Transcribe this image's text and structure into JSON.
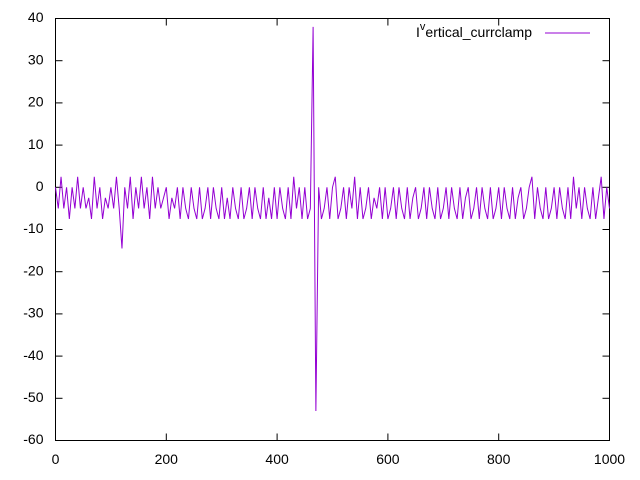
{
  "chart_data": {
    "type": "line",
    "x": [
      0,
      5,
      10,
      15,
      20,
      25,
      30,
      35,
      40,
      45,
      50,
      55,
      60,
      65,
      70,
      75,
      80,
      85,
      90,
      95,
      100,
      105,
      110,
      115,
      120,
      125,
      130,
      135,
      140,
      145,
      150,
      155,
      160,
      165,
      170,
      175,
      180,
      185,
      190,
      195,
      200,
      205,
      210,
      215,
      220,
      225,
      230,
      235,
      240,
      245,
      250,
      255,
      260,
      265,
      270,
      275,
      280,
      285,
      290,
      295,
      300,
      305,
      310,
      315,
      320,
      325,
      330,
      335,
      340,
      345,
      350,
      355,
      360,
      365,
      370,
      375,
      380,
      385,
      390,
      395,
      400,
      405,
      410,
      415,
      420,
      425,
      430,
      435,
      440,
      445,
      450,
      455,
      460,
      465,
      470,
      475,
      480,
      485,
      490,
      495,
      500,
      505,
      510,
      515,
      520,
      525,
      530,
      535,
      540,
      545,
      550,
      555,
      560,
      565,
      570,
      575,
      580,
      585,
      590,
      595,
      600,
      605,
      610,
      615,
      620,
      625,
      630,
      635,
      640,
      645,
      650,
      655,
      660,
      665,
      670,
      675,
      680,
      685,
      690,
      695,
      700,
      705,
      710,
      715,
      720,
      725,
      730,
      735,
      740,
      745,
      750,
      755,
      760,
      765,
      770,
      775,
      780,
      785,
      790,
      795,
      800,
      805,
      810,
      815,
      820,
      825,
      830,
      835,
      840,
      845,
      850,
      855,
      860,
      865,
      870,
      875,
      880,
      885,
      890,
      895,
      900,
      905,
      910,
      915,
      920,
      925,
      930,
      935,
      940,
      945,
      950,
      955,
      960,
      965,
      970,
      975,
      980,
      985,
      990,
      995,
      1000
    ],
    "series": [
      {
        "name": "Ivertical_currclamp",
        "color": "#9400d3",
        "values": [
          0,
          -5,
          2.5,
          -5,
          0,
          -7.5,
          0,
          -5,
          2.5,
          -5,
          0,
          -5,
          -2.5,
          -7.5,
          2.5,
          -5,
          0,
          -7.5,
          -2.5,
          -5,
          0,
          -5,
          2.5,
          -5,
          -14.5,
          0,
          -5,
          2.5,
          -7.5,
          0,
          -5,
          2.5,
          -5,
          0,
          -7.5,
          2.5,
          -5,
          0,
          -5,
          -2.5,
          0,
          -7.5,
          -2.5,
          -5,
          0,
          -7.5,
          0,
          -5,
          -7.5,
          0,
          -5,
          -7.5,
          0,
          -7.5,
          -5,
          0,
          -7.5,
          0,
          -5,
          -7.5,
          0,
          -7.5,
          -2.5,
          -7.5,
          0,
          -5,
          -7.5,
          0,
          -7.5,
          -5,
          0,
          -7.5,
          0,
          -5,
          -7.5,
          0,
          -7.5,
          -2.5,
          -7.5,
          0,
          -7.5,
          0,
          -5,
          -7.5,
          0,
          -7.5,
          2.5,
          -5,
          0,
          -7.5,
          0,
          -7.5,
          -5,
          38,
          -53,
          0,
          -7.5,
          -5,
          0,
          -7.5,
          0,
          2.5,
          -7.5,
          -5,
          0,
          -7.5,
          0,
          -5,
          2.5,
          -7.5,
          0,
          -7.5,
          -5,
          0,
          -7.5,
          -2.5,
          -5,
          0,
          -7.5,
          0,
          -7.5,
          -5,
          0,
          -7.5,
          0,
          -5,
          -7.5,
          0,
          -7.5,
          -2.5,
          0,
          -7.5,
          -5,
          0,
          -7.5,
          0,
          -5,
          -7.5,
          0,
          -7.5,
          -5,
          0,
          -7.5,
          0,
          -5,
          -7.5,
          0,
          -7.5,
          -2.5,
          0,
          -7.5,
          -5,
          0,
          -7.5,
          0,
          -5,
          -7.5,
          0,
          -7.5,
          -5,
          0,
          -7.5,
          0,
          -5,
          -7.5,
          0,
          -7.5,
          -2.5,
          0,
          -7.5,
          -5,
          0,
          2.5,
          -7.5,
          0,
          -5,
          -7.5,
          0,
          -7.5,
          -5,
          0,
          -7.5,
          0,
          -5,
          -7.5,
          0,
          -7.5,
          2.5,
          -5,
          0,
          -7.5,
          0,
          -5,
          -7.5,
          0,
          -7.5,
          -2.5,
          2.5,
          -7.5,
          0,
          -5
        ]
      }
    ],
    "xlim": [
      0,
      1000
    ],
    "xticks": [
      0,
      200,
      400,
      600,
      800,
      1000
    ],
    "ylim": [
      -60,
      40
    ],
    "yticks": [
      -60,
      -50,
      -40,
      -30,
      -20,
      -10,
      0,
      10,
      20,
      30,
      40
    ],
    "legend": "top-right"
  }
}
